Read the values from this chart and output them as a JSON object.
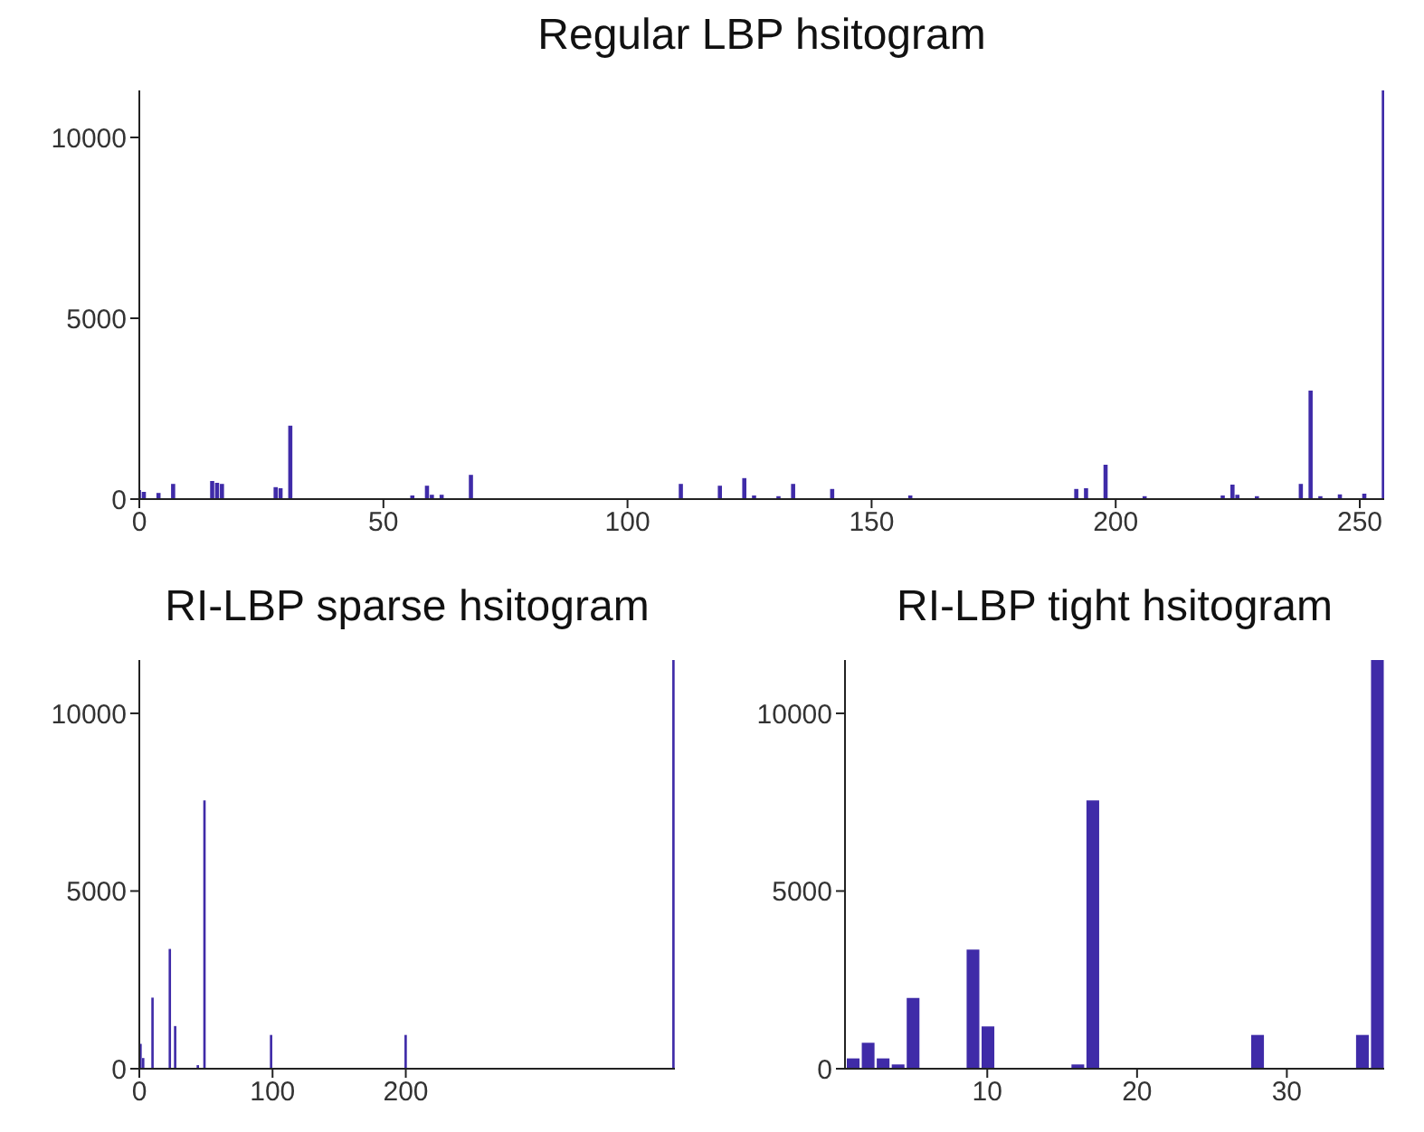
{
  "chart_data": [
    {
      "type": "bar",
      "title": "Regular LBP hsitogram",
      "color": "#3f2ba8",
      "xlim": [
        0,
        255
      ],
      "xticks": [
        0,
        50,
        100,
        150,
        200,
        250
      ],
      "ylim": [
        0,
        11300
      ],
      "yticks": [
        0,
        5000,
        10000
      ],
      "x": [
        0,
        1,
        4,
        7,
        15,
        16,
        17,
        28,
        29,
        31,
        56,
        59,
        60,
        62,
        68,
        111,
        119,
        124,
        126,
        131,
        134,
        142,
        158,
        192,
        194,
        198,
        206,
        222,
        224,
        225,
        229,
        238,
        240,
        242,
        246,
        251,
        255
      ],
      "values": [
        250,
        200,
        170,
        420,
        500,
        450,
        420,
        330,
        300,
        2030,
        100,
        370,
        120,
        120,
        670,
        420,
        370,
        580,
        100,
        80,
        420,
        280,
        100,
        280,
        300,
        950,
        80,
        100,
        400,
        120,
        80,
        420,
        3000,
        80,
        130,
        150,
        11300
      ]
    },
    {
      "type": "bar",
      "title": "RI-LBP sparse hsitogram",
      "color": "#3f2ba8",
      "xlim": [
        0,
        402
      ],
      "xticks": [
        0,
        100,
        200
      ],
      "ylim": [
        0,
        11500
      ],
      "yticks": [
        0,
        5000,
        10000
      ],
      "x": [
        1,
        3,
        10,
        23,
        27,
        44,
        49,
        99,
        200,
        401
      ],
      "values": [
        700,
        300,
        2000,
        3370,
        1200,
        100,
        7550,
        950,
        950,
        11500
      ]
    },
    {
      "type": "bar",
      "title": "RI-LBP tight hsitogram",
      "color": "#3f2ba8",
      "xlim": [
        0.5,
        36.5
      ],
      "xticks": [
        10,
        20,
        30
      ],
      "ylim": [
        0,
        11500
      ],
      "yticks": [
        0,
        5000,
        10000
      ],
      "x": [
        1,
        2,
        3,
        4,
        5,
        6,
        7,
        8,
        9,
        10,
        11,
        12,
        13,
        14,
        15,
        16,
        17,
        18,
        19,
        20,
        21,
        22,
        23,
        24,
        25,
        26,
        27,
        28,
        29,
        30,
        31,
        32,
        33,
        34,
        35,
        36
      ],
      "values": [
        290,
        730,
        290,
        120,
        1990,
        0,
        0,
        0,
        3350,
        1190,
        0,
        0,
        0,
        0,
        0,
        120,
        7550,
        0,
        0,
        0,
        0,
        0,
        0,
        0,
        0,
        0,
        0,
        950,
        0,
        0,
        0,
        0,
        0,
        0,
        950,
        11500
      ]
    }
  ]
}
